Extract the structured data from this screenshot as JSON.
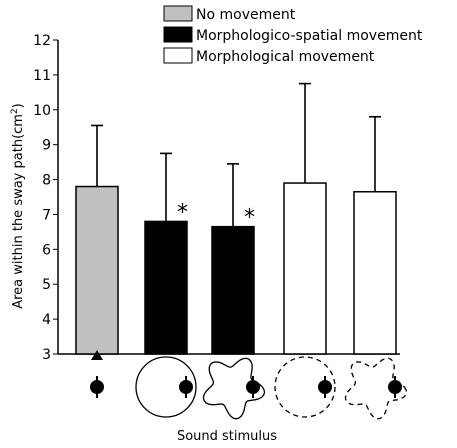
{
  "chart_data": {
    "type": "bar",
    "xlabel": "Sound stimulus",
    "ylabel": "Area within the sway path(cm",
    "ylabel_sup": "2",
    "ylabel_close": ")",
    "ylim": [
      3,
      12
    ],
    "yticks": [
      "3",
      "4",
      "5",
      "6",
      "7",
      "8",
      "9",
      "10",
      "11",
      "12"
    ],
    "legend_position": "top-right",
    "legend": [
      {
        "name": "No movement",
        "color": "#c0c0c0"
      },
      {
        "name": "Morphologico-spatial movement",
        "color": "#000000"
      },
      {
        "name": "Morphological movement",
        "color": "#ffffff"
      }
    ],
    "categories": [
      {
        "icon": "center-dot-icon"
      },
      {
        "icon": "circle-path-icon"
      },
      {
        "icon": "wavy-path-icon"
      },
      {
        "icon": "dashed-circle-path-icon"
      },
      {
        "icon": "dashed-wavy-path-icon"
      }
    ],
    "bars": [
      {
        "value": 7.8,
        "error": 1.75,
        "group": 0,
        "significance": ""
      },
      {
        "value": 6.8,
        "error": 1.95,
        "group": 1,
        "significance": "*"
      },
      {
        "value": 6.65,
        "error": 1.8,
        "group": 1,
        "significance": "*"
      },
      {
        "value": 7.9,
        "error": 2.85,
        "group": 2,
        "significance": ""
      },
      {
        "value": 7.65,
        "error": 2.15,
        "group": 2,
        "significance": ""
      }
    ]
  }
}
